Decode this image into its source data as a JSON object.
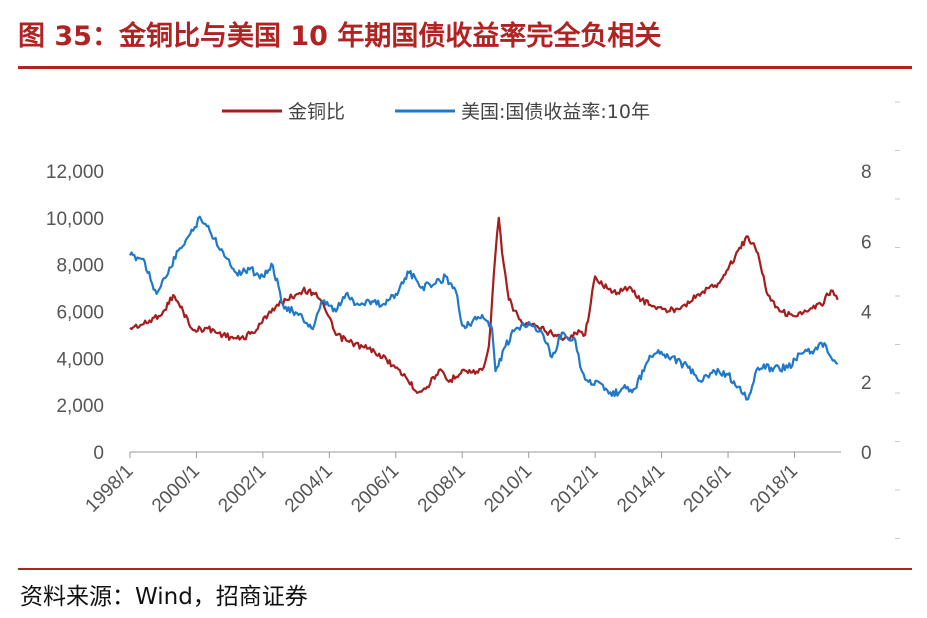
{
  "title": "图 35：金铜比与美国 10 年期国债收益率完全负相关",
  "source": "资料来源：Wind，招商证券",
  "colors": {
    "accent": "#b22222",
    "series_red": "#a51d1d",
    "series_blue": "#1f78c8"
  },
  "chart_data": {
    "type": "line",
    "x_tick_labels": [
      "1998/1",
      "2000/1",
      "2002/1",
      "2004/1",
      "2006/1",
      "2008/1",
      "2010/1",
      "2012/1",
      "2014/1",
      "2016/1",
      "2018/1"
    ],
    "xlim": [
      1998.0,
      2019.4
    ],
    "y_left": {
      "ticks": [
        "0",
        "2,000",
        "4,000",
        "6,000",
        "8,000",
        "10,000",
        "12,000"
      ],
      "ylim": [
        0,
        12000
      ]
    },
    "y_right": {
      "ticks": [
        "0",
        "2",
        "4",
        "6",
        "8"
      ],
      "ylim": [
        0,
        8
      ]
    },
    "legend_position": "top",
    "series": [
      {
        "name": "金铜比",
        "axis": "left",
        "color": "#a51d1d",
        "x": [
          1998.0,
          1998.5,
          1999.0,
          1999.3,
          1999.6,
          1999.9,
          2000.3,
          2000.8,
          2001.3,
          2001.8,
          2002.2,
          2002.7,
          2003.2,
          2003.6,
          2003.9,
          2004.2,
          2004.6,
          2005.0,
          2005.5,
          2005.9,
          2006.3,
          2006.6,
          2006.9,
          2007.3,
          2007.6,
          2008.0,
          2008.3,
          2008.6,
          2008.8,
          2009.0,
          2009.1,
          2009.2,
          2009.4,
          2009.8,
          2010.3,
          2010.8,
          2011.2,
          2011.5,
          2011.7,
          2012.0,
          2012.5,
          2013.0,
          2013.4,
          2013.8,
          2014.2,
          2014.7,
          2015.2,
          2015.7,
          2016.0,
          2016.3,
          2016.6,
          2016.9,
          2017.2,
          2017.6,
          2018.0,
          2018.4,
          2018.8,
          2019.1,
          2019.3
        ],
        "y": [
          5300,
          5500,
          6000,
          6700,
          6000,
          5200,
          5300,
          5000,
          4800,
          5200,
          6000,
          6500,
          6900,
          6800,
          6000,
          5000,
          4700,
          4500,
          4200,
          3700,
          3200,
          2600,
          2700,
          3500,
          3000,
          3500,
          3400,
          3500,
          4500,
          8500,
          10000,
          8500,
          6500,
          5500,
          5300,
          5000,
          4800,
          5200,
          5000,
          7500,
          6800,
          7000,
          6500,
          6200,
          6000,
          6300,
          6800,
          7200,
          7800,
          8600,
          9200,
          8500,
          6700,
          6000,
          5800,
          6000,
          6300,
          6900,
          6500
        ]
      },
      {
        "name": "美国:国债收益率:10年",
        "axis": "right",
        "color": "#1f78c8",
        "x": [
          1998.0,
          1998.4,
          1998.8,
          1999.1,
          1999.5,
          1999.9,
          2000.1,
          2000.4,
          2000.8,
          2001.2,
          2001.6,
          2002.0,
          2002.3,
          2002.6,
          2002.9,
          2003.2,
          2003.5,
          2003.8,
          2004.2,
          2004.5,
          2004.8,
          2005.2,
          2005.6,
          2006.0,
          2006.4,
          2006.8,
          2007.2,
          2007.5,
          2007.8,
          2008.0,
          2008.3,
          2008.6,
          2008.9,
          2009.0,
          2009.3,
          2009.6,
          2010.0,
          2010.4,
          2010.7,
          2011.0,
          2011.4,
          2011.6,
          2011.8,
          2012.1,
          2012.5,
          2012.8,
          2013.2,
          2013.6,
          2013.9,
          2014.3,
          2014.8,
          2015.2,
          2015.6,
          2016.0,
          2016.4,
          2016.6,
          2016.9,
          2017.3,
          2017.8,
          2018.2,
          2018.6,
          2018.9,
          2019.1,
          2019.3
        ],
        "y": [
          5.6,
          5.5,
          4.5,
          5.0,
          5.8,
          6.3,
          6.7,
          6.3,
          5.7,
          5.1,
          5.2,
          5.0,
          5.3,
          4.2,
          4.0,
          3.8,
          3.5,
          4.3,
          4.0,
          4.5,
          4.2,
          4.3,
          4.2,
          4.5,
          5.1,
          4.7,
          4.8,
          5.0,
          4.6,
          3.6,
          3.7,
          3.9,
          3.5,
          2.3,
          3.0,
          3.5,
          3.7,
          3.4,
          2.7,
          3.4,
          3.2,
          2.3,
          2.0,
          2.0,
          1.6,
          1.8,
          1.8,
          2.6,
          2.9,
          2.7,
          2.4,
          2.0,
          2.3,
          2.2,
          1.7,
          1.5,
          2.4,
          2.4,
          2.4,
          2.8,
          2.9,
          3.1,
          2.7,
          2.5
        ]
      }
    ]
  }
}
